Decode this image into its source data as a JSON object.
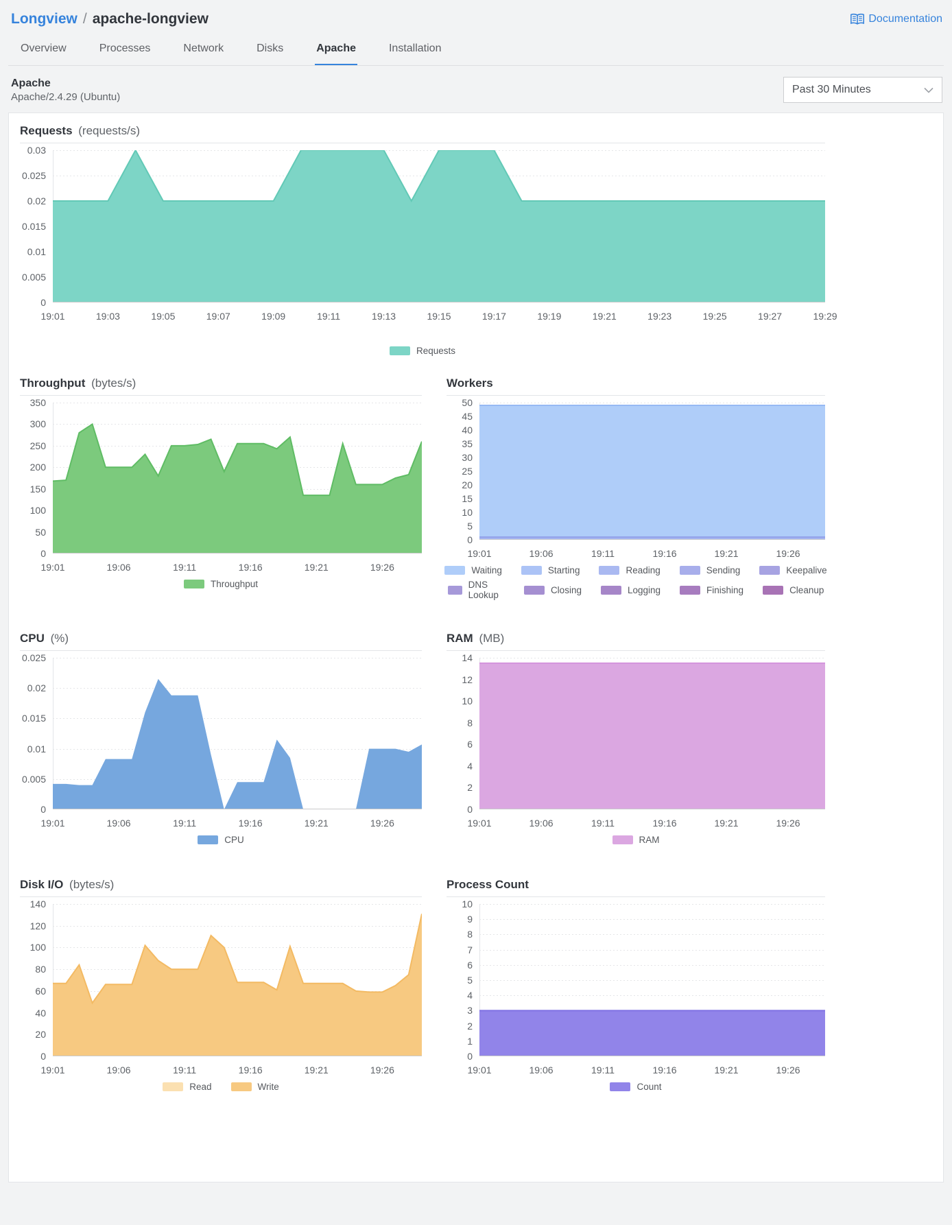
{
  "header": {
    "breadcrumb": {
      "section": "Longview",
      "separator": "/",
      "page": "apache-longview"
    },
    "documentation_label": "Documentation"
  },
  "tabs": [
    {
      "label": "Overview",
      "active": false
    },
    {
      "label": "Processes",
      "active": false
    },
    {
      "label": "Network",
      "active": false
    },
    {
      "label": "Disks",
      "active": false
    },
    {
      "label": "Apache",
      "active": true
    },
    {
      "label": "Installation",
      "active": false
    }
  ],
  "subheader": {
    "title": "Apache",
    "subtitle": "Apache/2.4.29 (Ubuntu)"
  },
  "time_select": {
    "value": "Past 30 Minutes"
  },
  "accent_color": "#3683DC",
  "chart_data": [
    {
      "id": "requests",
      "type": "area",
      "title": "Requests",
      "unit": "(requests/s)",
      "x": [
        "19:01",
        "19:02",
        "19:03",
        "19:04",
        "19:05",
        "19:06",
        "19:07",
        "19:08",
        "19:09",
        "19:10",
        "19:11",
        "19:12",
        "19:13",
        "19:14",
        "19:15",
        "19:16",
        "19:17",
        "19:18",
        "19:19",
        "19:20",
        "19:21",
        "19:22",
        "19:23",
        "19:24",
        "19:25",
        "19:26",
        "19:27",
        "19:28",
        "19:29"
      ],
      "xticks": [
        "19:01",
        "19:03",
        "19:05",
        "19:07",
        "19:09",
        "19:11",
        "19:13",
        "19:15",
        "19:17",
        "19:19",
        "19:21",
        "19:23",
        "19:25",
        "19:27",
        "19:29"
      ],
      "ylim": [
        0,
        0.03
      ],
      "yticks": [
        0,
        0.005,
        0.01,
        0.015,
        0.02,
        0.025,
        0.03
      ],
      "ytick_labels": [
        "0",
        "0.005",
        "0.01",
        "0.015",
        "0.02",
        "0.025",
        "0.03"
      ],
      "grid": true,
      "legend_position": "bottom-center",
      "series": [
        {
          "name": "Requests",
          "color": "#7DD5C6",
          "edge": "#62C9B6",
          "values": [
            0.02,
            0.02,
            0.02,
            0.03,
            0.02,
            0.02,
            0.02,
            0.02,
            0.02,
            0.03,
            0.03,
            0.03,
            0.03,
            0.02,
            0.03,
            0.03,
            0.03,
            0.02,
            0.02,
            0.02,
            0.02,
            0.02,
            0.02,
            0.02,
            0.02,
            0.02,
            0.02,
            0.02,
            0.02
          ]
        }
      ],
      "legend": [
        {
          "label": "Requests",
          "color": "#7DD5C6"
        }
      ],
      "legend_per_row": 5
    },
    {
      "id": "throughput",
      "type": "area",
      "title": "Throughput",
      "unit": "(bytes/s)",
      "x": [
        "19:01",
        "19:02",
        "19:03",
        "19:04",
        "19:05",
        "19:06",
        "19:07",
        "19:08",
        "19:09",
        "19:10",
        "19:11",
        "19:12",
        "19:13",
        "19:14",
        "19:15",
        "19:16",
        "19:17",
        "19:18",
        "19:19",
        "19:20",
        "19:21",
        "19:22",
        "19:23",
        "19:24",
        "19:25",
        "19:26",
        "19:27",
        "19:28",
        "19:29"
      ],
      "xticks": [
        "19:01",
        "19:06",
        "19:11",
        "19:16",
        "19:21",
        "19:26"
      ],
      "ylim": [
        0,
        350
      ],
      "yticks": [
        0,
        50,
        100,
        150,
        200,
        250,
        300,
        350
      ],
      "ytick_labels": [
        "0",
        "50",
        "100",
        "150",
        "200",
        "250",
        "300",
        "350"
      ],
      "grid": true,
      "legend_position": "bottom-center",
      "series": [
        {
          "name": "Throughput",
          "color": "#7CCA7D",
          "edge": "#5FBC64",
          "values": [
            168,
            170,
            280,
            300,
            200,
            200,
            200,
            230,
            180,
            250,
            250,
            253,
            265,
            190,
            255,
            255,
            255,
            243,
            270,
            135,
            135,
            135,
            255,
            160,
            160,
            160,
            175,
            183,
            260
          ]
        }
      ],
      "legend": [
        {
          "label": "Throughput",
          "color": "#7CCA7D"
        }
      ],
      "legend_per_row": 5
    },
    {
      "id": "workers",
      "type": "area",
      "title": "Workers",
      "unit": "",
      "x": [
        "19:01",
        "19:02",
        "19:03",
        "19:04",
        "19:05",
        "19:06",
        "19:07",
        "19:08",
        "19:09",
        "19:10",
        "19:11",
        "19:12",
        "19:13",
        "19:14",
        "19:15",
        "19:16",
        "19:17",
        "19:18",
        "19:19",
        "19:20",
        "19:21",
        "19:22",
        "19:23",
        "19:24",
        "19:25",
        "19:26",
        "19:27",
        "19:28",
        "19:29"
      ],
      "xticks": [
        "19:01",
        "19:06",
        "19:11",
        "19:16",
        "19:21",
        "19:26"
      ],
      "ylim": [
        0,
        50
      ],
      "yticks": [
        0,
        5,
        10,
        15,
        20,
        25,
        30,
        35,
        40,
        45,
        50
      ],
      "ytick_labels": [
        "0",
        "5",
        "10",
        "15",
        "20",
        "25",
        "30",
        "35",
        "40",
        "45",
        "50"
      ],
      "grid": true,
      "legend_position": "bottom-center",
      "series": [
        {
          "name": "Waiting",
          "color": "#AFCDF9",
          "edge": "#96B9F3",
          "values": [
            49,
            49,
            49,
            49,
            49,
            49,
            49,
            49,
            49,
            49,
            49,
            49,
            49,
            49,
            49,
            49,
            49,
            49,
            49,
            49,
            49,
            49,
            49,
            49,
            49,
            49,
            49,
            49,
            49
          ]
        },
        {
          "name": "Sending",
          "color": "#A4B4F0",
          "edge": "#93A3EA",
          "values": [
            1,
            1,
            1,
            1,
            1,
            1,
            1,
            1,
            1,
            1,
            1,
            1,
            1,
            1,
            1,
            1,
            1,
            1,
            1,
            1,
            1,
            1,
            1,
            1,
            1,
            1,
            1,
            1,
            1
          ]
        }
      ],
      "legend": [
        {
          "label": "Waiting",
          "color": "#AFCDF9"
        },
        {
          "label": "Starting",
          "color": "#ACC3F6"
        },
        {
          "label": "Reading",
          "color": "#AAB9F1"
        },
        {
          "label": "Sending",
          "color": "#A8AEEB"
        },
        {
          "label": "Keepalive",
          "color": "#A7A3E2"
        },
        {
          "label": "DNS Lookup",
          "color": "#A699D9"
        },
        {
          "label": "Closing",
          "color": "#A58FD1"
        },
        {
          "label": "Logging",
          "color": "#A686C8"
        },
        {
          "label": "Finishing",
          "color": "#A77CBF"
        },
        {
          "label": "Cleanup",
          "color": "#A873B5"
        }
      ],
      "legend_per_row": 5
    },
    {
      "id": "cpu",
      "type": "area",
      "title": "CPU",
      "unit": "(%)",
      "x": [
        "19:01",
        "19:02",
        "19:03",
        "19:04",
        "19:05",
        "19:06",
        "19:07",
        "19:08",
        "19:09",
        "19:10",
        "19:11",
        "19:12",
        "19:13",
        "19:14",
        "19:15",
        "19:16",
        "19:17",
        "19:18",
        "19:19",
        "19:20",
        "19:21",
        "19:22",
        "19:23",
        "19:24",
        "19:25",
        "19:26",
        "19:27",
        "19:28",
        "19:29"
      ],
      "xticks": [
        "19:01",
        "19:06",
        "19:11",
        "19:16",
        "19:21",
        "19:26"
      ],
      "ylim": [
        0,
        0.025
      ],
      "yticks": [
        0,
        0.005,
        0.01,
        0.015,
        0.02,
        0.025
      ],
      "ytick_labels": [
        "0",
        "0.005",
        "0.01",
        "0.015",
        "0.02",
        "0.025"
      ],
      "grid": true,
      "legend_position": "bottom-center",
      "series": [
        {
          "name": "CPU",
          "color": "#76A7DE",
          "edge": null,
          "values": [
            0.0042,
            0.0042,
            0.004,
            0.004,
            0.0083,
            0.0083,
            0.0083,
            0.016,
            0.0215,
            0.0188,
            0.0188,
            0.0188,
            0.009,
            0,
            0.0045,
            0.0045,
            0.0045,
            0.0115,
            0.0085,
            0,
            0,
            0,
            0,
            0,
            0.01,
            0.01,
            0.01,
            0.0095,
            0.0107
          ]
        }
      ],
      "legend": [
        {
          "label": "CPU",
          "color": "#76A7DE"
        }
      ],
      "legend_per_row": 5
    },
    {
      "id": "ram",
      "type": "area",
      "title": "RAM",
      "unit": "(MB)",
      "x": [
        "19:01",
        "19:02",
        "19:03",
        "19:04",
        "19:05",
        "19:06",
        "19:07",
        "19:08",
        "19:09",
        "19:10",
        "19:11",
        "19:12",
        "19:13",
        "19:14",
        "19:15",
        "19:16",
        "19:17",
        "19:18",
        "19:19",
        "19:20",
        "19:21",
        "19:22",
        "19:23",
        "19:24",
        "19:25",
        "19:26",
        "19:27",
        "19:28",
        "19:29"
      ],
      "xticks": [
        "19:01",
        "19:06",
        "19:11",
        "19:16",
        "19:21",
        "19:26"
      ],
      "ylim": [
        0,
        14
      ],
      "yticks": [
        0,
        2,
        4,
        6,
        8,
        10,
        12,
        14
      ],
      "ytick_labels": [
        "0",
        "2",
        "4",
        "6",
        "8",
        "10",
        "12",
        "14"
      ],
      "grid": true,
      "legend_position": "bottom-center",
      "series": [
        {
          "name": "RAM",
          "color": "#DBA7E1",
          "edge": "#D494DC",
          "values": [
            13.5,
            13.5,
            13.5,
            13.5,
            13.5,
            13.5,
            13.5,
            13.5,
            13.5,
            13.5,
            13.5,
            13.5,
            13.5,
            13.5,
            13.5,
            13.5,
            13.5,
            13.5,
            13.5,
            13.5,
            13.5,
            13.5,
            13.5,
            13.5,
            13.5,
            13.5,
            13.5,
            13.5,
            13.5
          ]
        }
      ],
      "legend": [
        {
          "label": "RAM",
          "color": "#DBA7E1"
        }
      ],
      "legend_per_row": 5
    },
    {
      "id": "disk-io",
      "type": "area",
      "title": "Disk I/O",
      "unit": "(bytes/s)",
      "x": [
        "19:01",
        "19:02",
        "19:03",
        "19:04",
        "19:05",
        "19:06",
        "19:07",
        "19:08",
        "19:09",
        "19:10",
        "19:11",
        "19:12",
        "19:13",
        "19:14",
        "19:15",
        "19:16",
        "19:17",
        "19:18",
        "19:19",
        "19:20",
        "19:21",
        "19:22",
        "19:23",
        "19:24",
        "19:25",
        "19:26",
        "19:27",
        "19:28",
        "19:29"
      ],
      "xticks": [
        "19:01",
        "19:06",
        "19:11",
        "19:16",
        "19:21",
        "19:26"
      ],
      "ylim": [
        0,
        140
      ],
      "yticks": [
        0,
        20,
        40,
        60,
        80,
        100,
        120,
        140
      ],
      "ytick_labels": [
        "0",
        "20",
        "40",
        "60",
        "80",
        "100",
        "120",
        "140"
      ],
      "grid": true,
      "legend_position": "bottom-center",
      "series": [
        {
          "name": "Read",
          "color": "#FBE0B1",
          "edge": null,
          "values": [
            0,
            0,
            0,
            0,
            0,
            0,
            0,
            0,
            0,
            0,
            0,
            0,
            0,
            0,
            0,
            0,
            0,
            0,
            0,
            0,
            0,
            0,
            0,
            0,
            0,
            0,
            0,
            0,
            0
          ]
        },
        {
          "name": "Write",
          "color": "#F7C981",
          "edge": "#F3BA63",
          "values": [
            67,
            67,
            84,
            49,
            66,
            66,
            66,
            102,
            88,
            80,
            80,
            80,
            111,
            100,
            68,
            68,
            68,
            61,
            101,
            67,
            67,
            67,
            67,
            60,
            59,
            59,
            65,
            75,
            131
          ]
        }
      ],
      "legend": [
        {
          "label": "Read",
          "color": "#FBE0B1"
        },
        {
          "label": "Write",
          "color": "#F7C981"
        }
      ],
      "legend_per_row": 5
    },
    {
      "id": "process-count",
      "type": "area",
      "title": "Process Count",
      "unit": "",
      "x": [
        "19:01",
        "19:02",
        "19:03",
        "19:04",
        "19:05",
        "19:06",
        "19:07",
        "19:08",
        "19:09",
        "19:10",
        "19:11",
        "19:12",
        "19:13",
        "19:14",
        "19:15",
        "19:16",
        "19:17",
        "19:18",
        "19:19",
        "19:20",
        "19:21",
        "19:22",
        "19:23",
        "19:24",
        "19:25",
        "19:26",
        "19:27",
        "19:28",
        "19:29"
      ],
      "xticks": [
        "19:01",
        "19:06",
        "19:11",
        "19:16",
        "19:21",
        "19:26"
      ],
      "ylim": [
        0,
        10
      ],
      "yticks": [
        0,
        1,
        2,
        3,
        4,
        5,
        6,
        7,
        8,
        9,
        10
      ],
      "ytick_labels": [
        "0",
        "1",
        "2",
        "3",
        "4",
        "5",
        "6",
        "7",
        "8",
        "9",
        "10"
      ],
      "grid": true,
      "legend_position": "bottom-center",
      "series": [
        {
          "name": "Count",
          "color": "#9184E9",
          "edge": "#7F70E3",
          "values": [
            3,
            3,
            3,
            3,
            3,
            3,
            3,
            3,
            3,
            3,
            3,
            3,
            3,
            3,
            3,
            3,
            3,
            3,
            3,
            3,
            3,
            3,
            3,
            3,
            3,
            3,
            3,
            3,
            3
          ]
        }
      ],
      "legend": [
        {
          "label": "Count",
          "color": "#9184E9"
        }
      ],
      "legend_per_row": 5
    }
  ]
}
